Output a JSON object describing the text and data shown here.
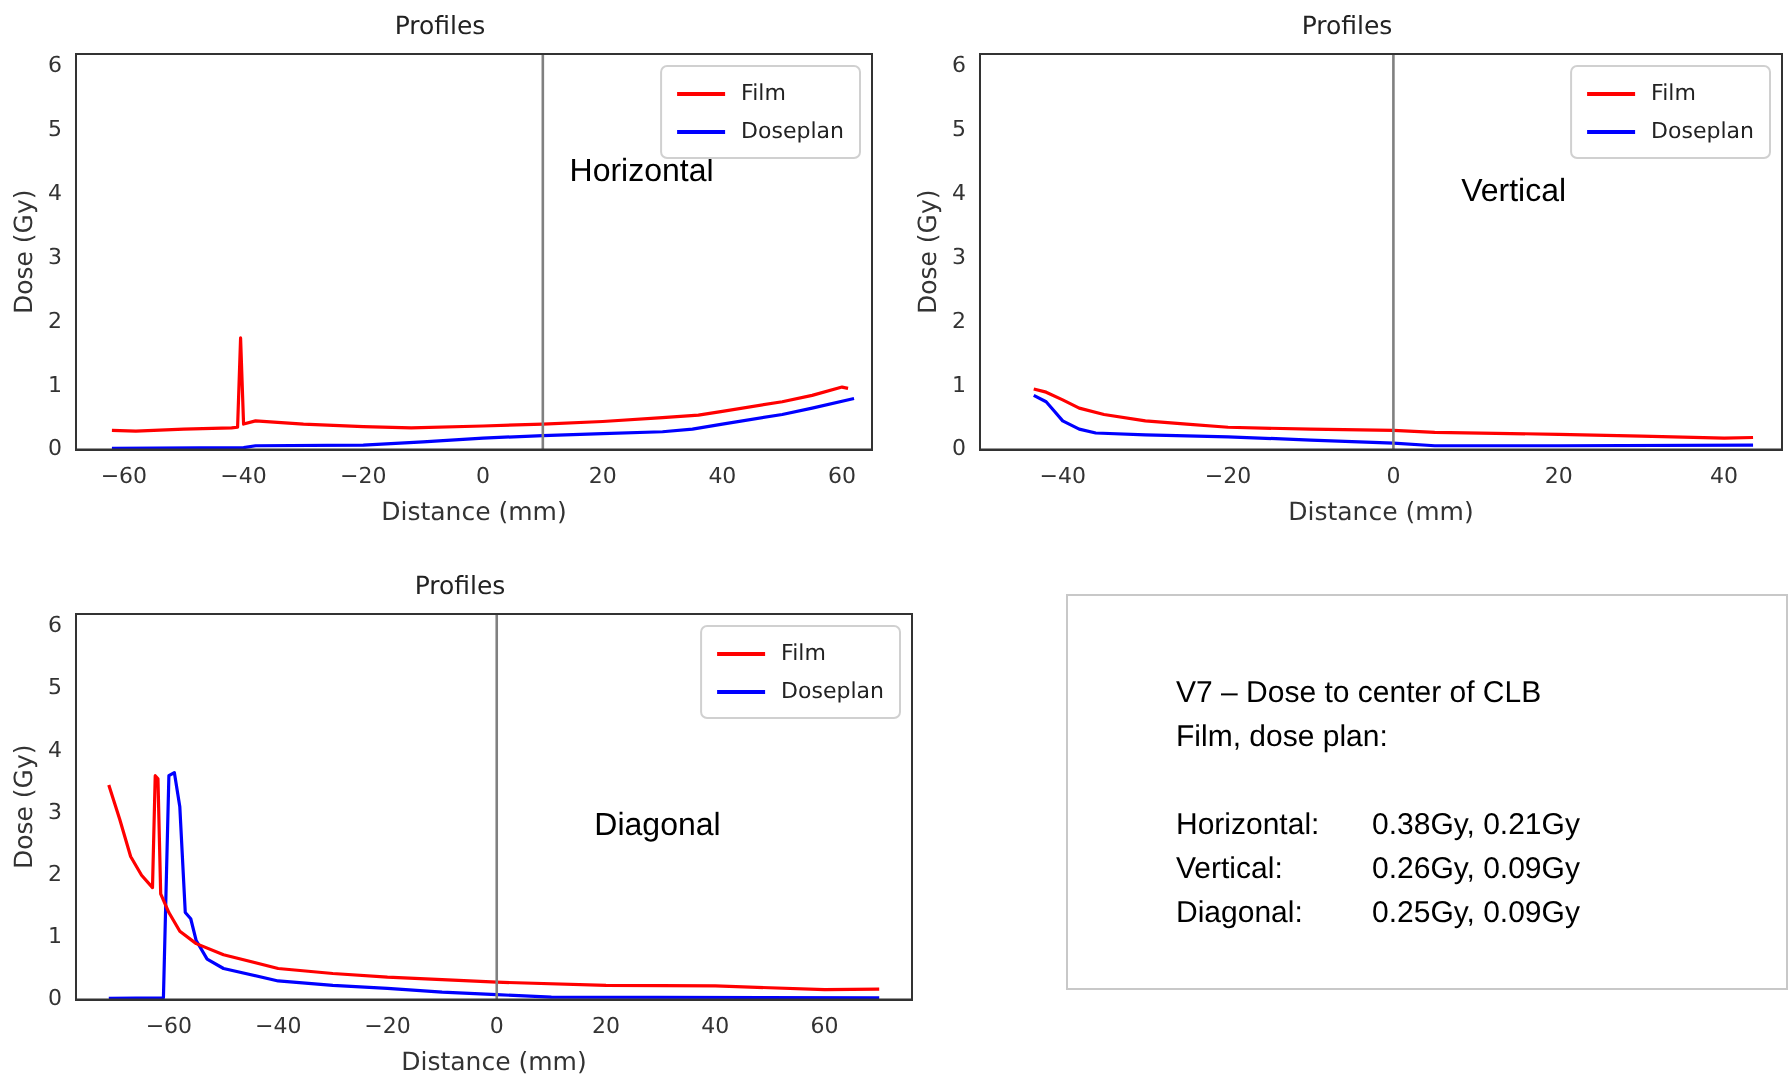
{
  "chart_data": [
    {
      "type": "line",
      "title": "Profiles",
      "xlabel": "Distance (mm)",
      "ylabel": "Dose (Gy)",
      "xlim": [
        -68,
        65
      ],
      "xticks": [
        -60,
        -40,
        -20,
        0,
        20,
        40,
        60
      ],
      "ylim": [
        0,
        6.2
      ],
      "yticks": [
        0,
        1,
        2,
        3,
        4,
        5,
        6
      ],
      "grid": false,
      "legend": "top right",
      "marker": "none",
      "line_style": "solid",
      "ref_lines": [
        {
          "axis": "x",
          "value": 10,
          "color": "#808080"
        }
      ],
      "annotations": [
        "Horizontal"
      ],
      "series": [
        {
          "name": "Film",
          "color": "#ff0000",
          "x": [
            -62,
            -58,
            -50,
            -42,
            -41,
            -40.5,
            -40,
            -38,
            -30,
            -20,
            -12,
            0,
            10,
            20,
            30,
            36,
            40,
            50,
            55,
            60,
            61
          ],
          "values": [
            0.3,
            0.29,
            0.32,
            0.34,
            0.35,
            1.75,
            0.4,
            0.45,
            0.4,
            0.36,
            0.34,
            0.37,
            0.4,
            0.44,
            0.5,
            0.54,
            0.6,
            0.75,
            0.85,
            0.98,
            0.96
          ]
        },
        {
          "name": "Doseplan",
          "color": "#0000ff",
          "x": [
            -62,
            -40,
            -38,
            -20,
            -10,
            0,
            10,
            20,
            30,
            35,
            40,
            50,
            55,
            62
          ],
          "values": [
            0.02,
            0.03,
            0.06,
            0.07,
            0.12,
            0.18,
            0.22,
            0.25,
            0.28,
            0.32,
            0.4,
            0.55,
            0.65,
            0.8
          ]
        }
      ]
    },
    {
      "type": "line",
      "title": "Profiles",
      "xlabel": "Distance (mm)",
      "ylabel": "Dose (Gy)",
      "xlim": [
        -50,
        47
      ],
      "xticks": [
        -40,
        -20,
        0,
        20,
        40
      ],
      "ylim": [
        0,
        6.2
      ],
      "yticks": [
        0,
        1,
        2,
        3,
        4,
        5,
        6
      ],
      "grid": false,
      "legend": "top right",
      "marker": "none",
      "line_style": "solid",
      "ref_lines": [
        {
          "axis": "x",
          "value": 0,
          "color": "#808080"
        }
      ],
      "annotations": [
        "Vertical"
      ],
      "series": [
        {
          "name": "Film",
          "color": "#ff0000",
          "x": [
            -43.5,
            -42,
            -40,
            -38,
            -35,
            -30,
            -25,
            -20,
            -10,
            0,
            5,
            20,
            30,
            40,
            43.5
          ],
          "values": [
            0.95,
            0.9,
            0.78,
            0.65,
            0.55,
            0.45,
            0.4,
            0.35,
            0.32,
            0.3,
            0.27,
            0.24,
            0.21,
            0.18,
            0.19
          ]
        },
        {
          "name": "Doseplan",
          "color": "#0000ff",
          "x": [
            -43.5,
            -42,
            -41,
            -40,
            -38,
            -36,
            -30,
            -20,
            -10,
            0,
            5,
            20,
            43.5
          ],
          "values": [
            0.85,
            0.75,
            0.6,
            0.45,
            0.32,
            0.26,
            0.23,
            0.2,
            0.15,
            0.1,
            0.06,
            0.06,
            0.07
          ]
        }
      ]
    },
    {
      "type": "line",
      "title": "Profiles",
      "xlabel": "Distance (mm)",
      "ylabel": "Dose (Gy)",
      "xlim": [
        -77,
        76
      ],
      "xticks": [
        -60,
        -40,
        -20,
        0,
        20,
        40,
        60
      ],
      "ylim": [
        0,
        6.2
      ],
      "yticks": [
        0,
        1,
        2,
        3,
        4,
        5,
        6
      ],
      "grid": false,
      "legend": "top right",
      "marker": "none",
      "line_style": "solid",
      "ref_lines": [
        {
          "axis": "x",
          "value": 0,
          "color": "#808080"
        }
      ],
      "annotations": [
        "Diagonal"
      ],
      "series": [
        {
          "name": "Film",
          "color": "#ff0000",
          "x": [
            -71,
            -69,
            -67,
            -65,
            -63,
            -62.5,
            -62,
            -61.5,
            -60,
            -58,
            -55,
            -50,
            -40,
            -30,
            -20,
            -10,
            0,
            20,
            40,
            60,
            70
          ],
          "values": [
            3.45,
            2.9,
            2.3,
            2.0,
            1.8,
            3.6,
            3.55,
            1.7,
            1.4,
            1.1,
            0.9,
            0.72,
            0.5,
            0.42,
            0.36,
            0.32,
            0.28,
            0.23,
            0.22,
            0.16,
            0.17
          ]
        },
        {
          "name": "Doseplan",
          "color": "#0000ff",
          "x": [
            -71,
            -61,
            -60,
            -59,
            -58,
            -57,
            -56,
            -55,
            -53,
            -50,
            -40,
            -30,
            -20,
            -10,
            0,
            10,
            70
          ],
          "values": [
            0.02,
            0.03,
            3.6,
            3.65,
            3.1,
            1.4,
            1.3,
            0.95,
            0.65,
            0.5,
            0.3,
            0.23,
            0.18,
            0.12,
            0.08,
            0.04,
            0.03
          ]
        }
      ]
    },
    {
      "type": "other",
      "annotations": [
        "V7 – Dose to center of CLB",
        "Film, dose plan:",
        "Horizontal:",
        "0.38Gy, 0.21Gy",
        "Vertical:",
        "0.26Gy, 0.09Gy",
        "Diagonal:",
        "0.25Gy, 0.09Gy"
      ]
    }
  ]
}
